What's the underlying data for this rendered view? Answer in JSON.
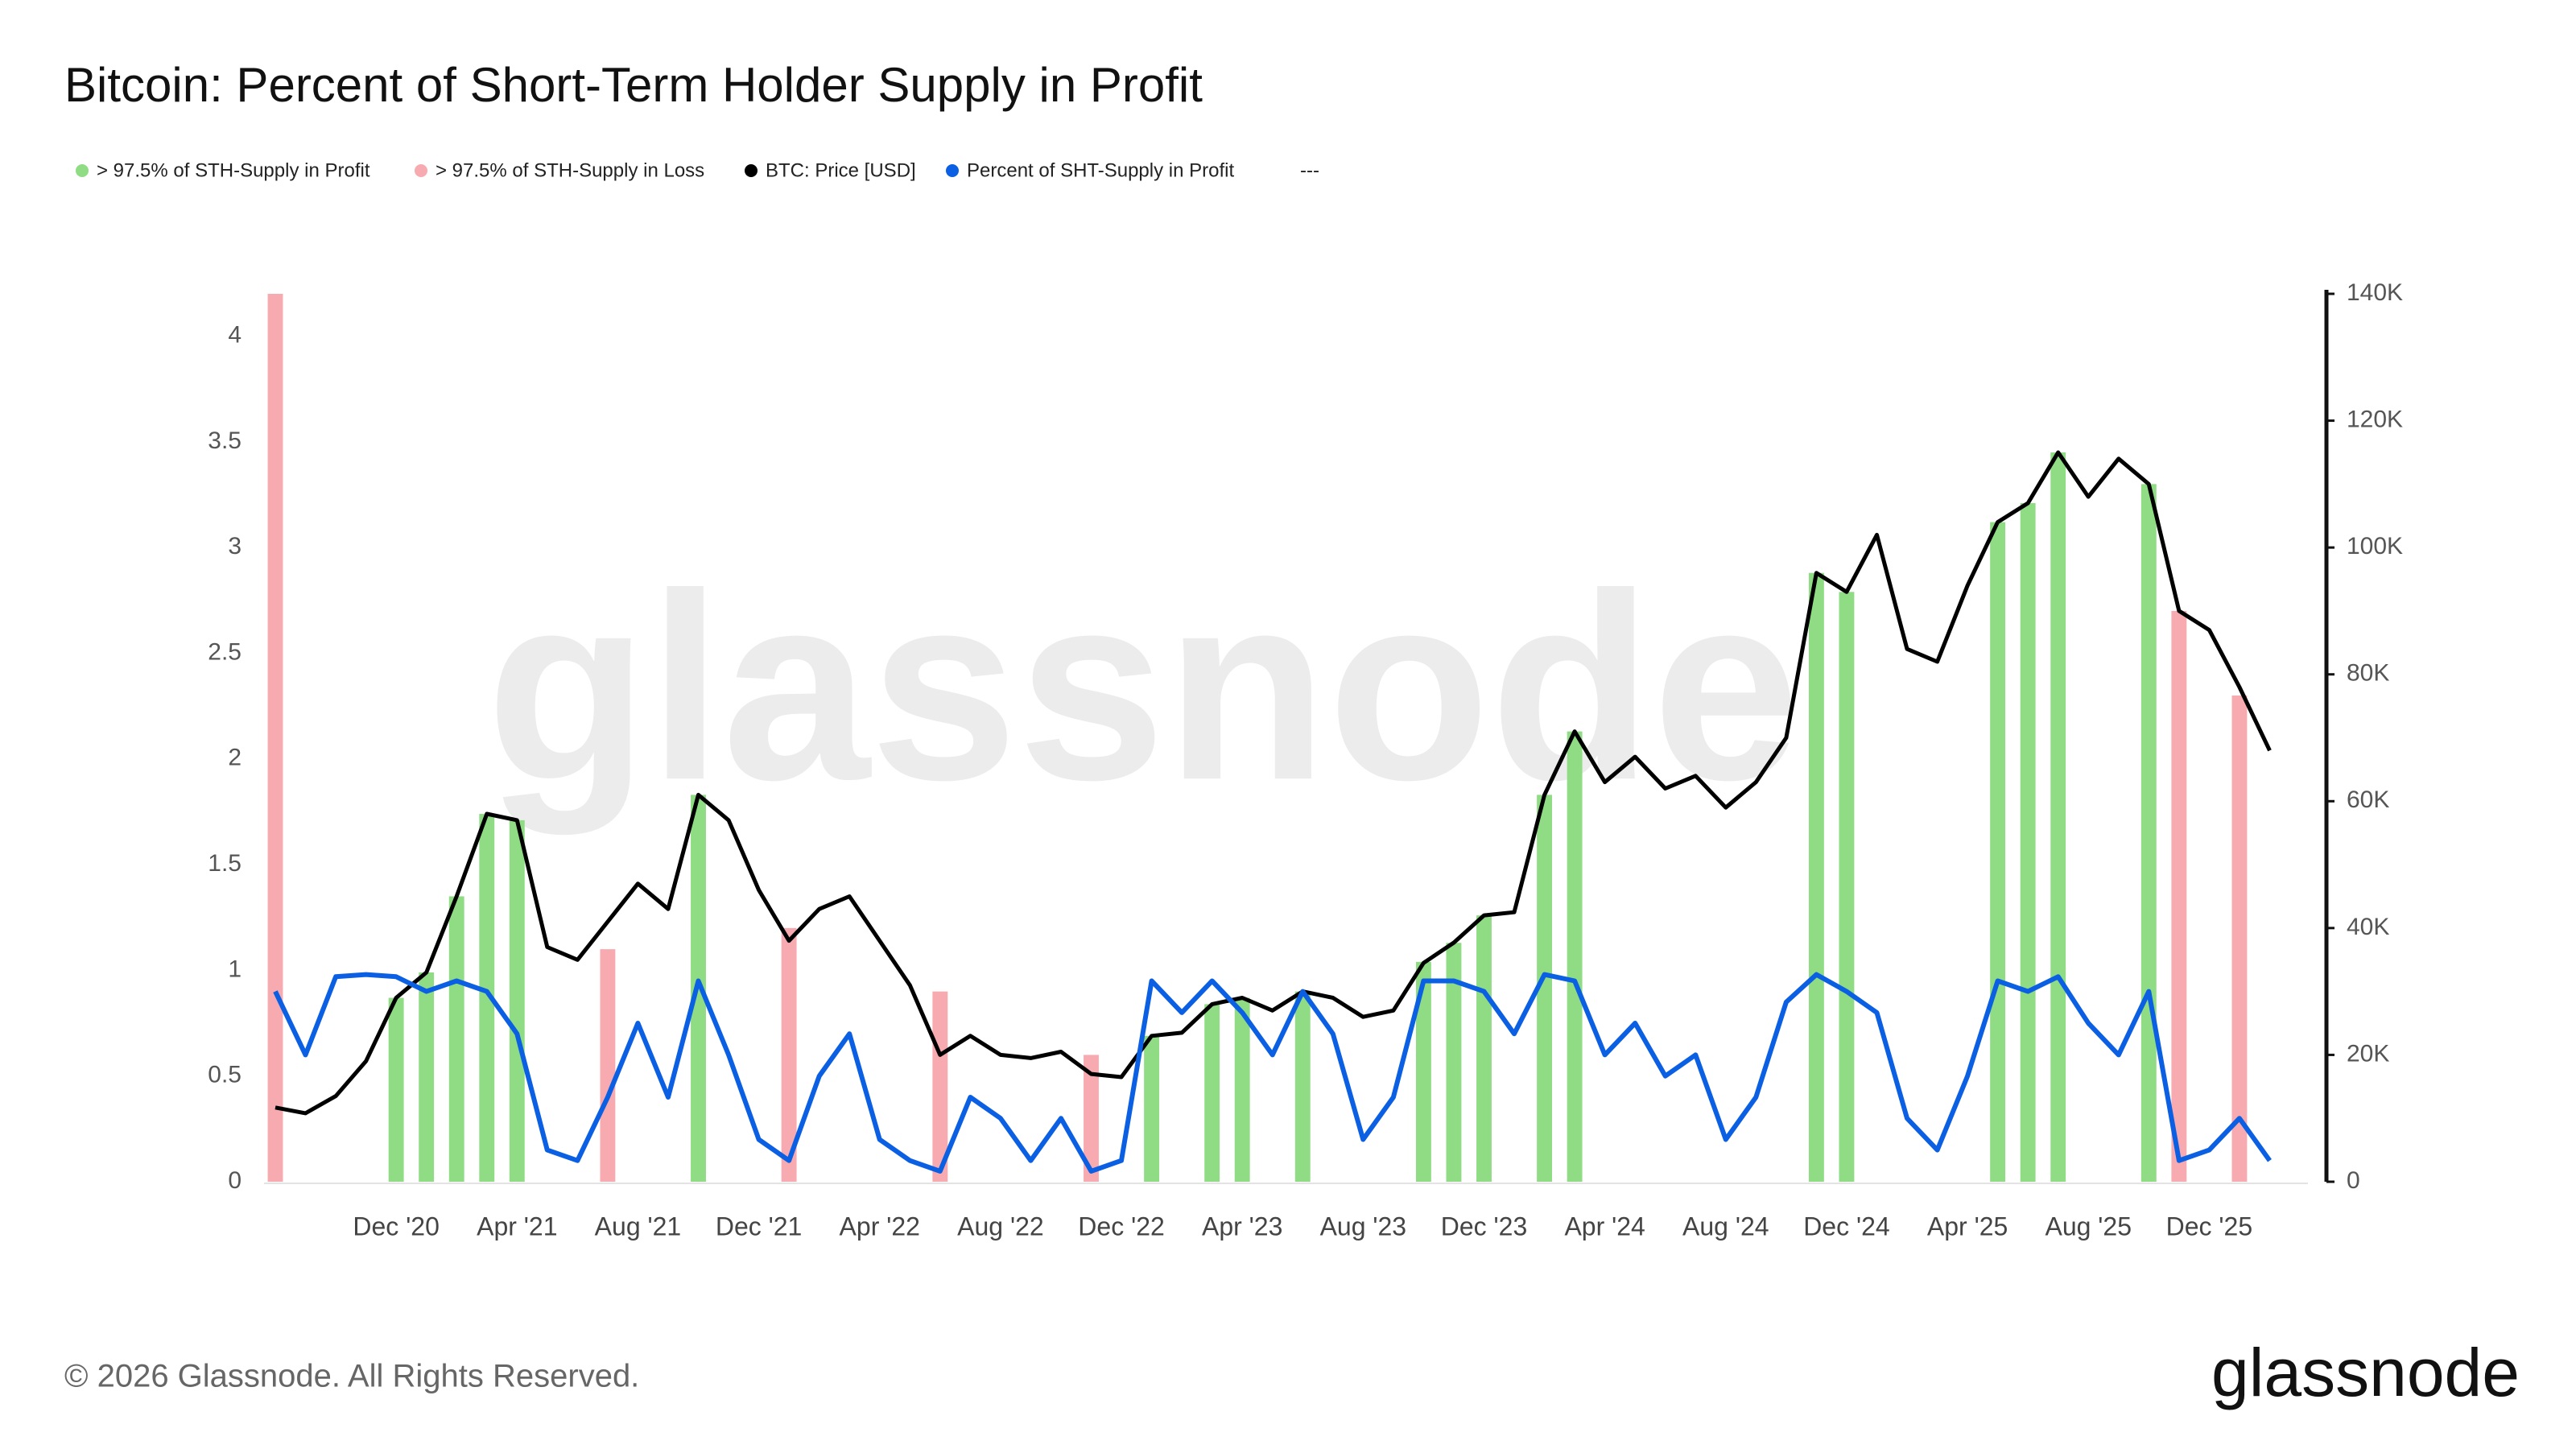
{
  "chart_data": {
    "type": "line",
    "title": "Bitcoin: Percent of Short-Term Holder Supply in Profit",
    "legend_extra": "---",
    "watermark": "glassnode",
    "footer": "© 2026 Glassnode. All Rights Reserved.",
    "logo": "glassnode",
    "x": [
      "2020-08",
      "2020-09",
      "2020-10",
      "2020-11",
      "2020-12",
      "2021-01",
      "2021-02",
      "2021-03",
      "2021-04",
      "2021-05",
      "2021-06",
      "2021-07",
      "2021-08",
      "2021-09",
      "2021-10",
      "2021-11",
      "2021-12",
      "2022-01",
      "2022-02",
      "2022-03",
      "2022-04",
      "2022-05",
      "2022-06",
      "2022-07",
      "2022-08",
      "2022-09",
      "2022-10",
      "2022-11",
      "2022-12",
      "2023-01",
      "2023-02",
      "2023-03",
      "2023-04",
      "2023-05",
      "2023-06",
      "2023-07",
      "2023-08",
      "2023-09",
      "2023-10",
      "2023-11",
      "2023-12",
      "2024-01",
      "2024-02",
      "2024-03",
      "2024-04",
      "2024-05",
      "2024-06",
      "2024-07",
      "2024-08",
      "2024-09",
      "2024-10",
      "2024-11",
      "2024-12",
      "2025-01",
      "2025-02",
      "2025-03",
      "2025-04",
      "2025-05",
      "2025-06",
      "2025-07",
      "2025-08",
      "2025-09",
      "2025-10",
      "2025-11",
      "2025-12",
      "2026-01",
      "2026-02"
    ],
    "xlim": [
      "2020-08",
      "2026-03"
    ],
    "xticks": [
      {
        "value": "2020-12",
        "label": "Dec '20"
      },
      {
        "value": "2021-04",
        "label": "Apr '21"
      },
      {
        "value": "2021-08",
        "label": "Aug '21"
      },
      {
        "value": "2021-12",
        "label": "Dec '21"
      },
      {
        "value": "2022-04",
        "label": "Apr '22"
      },
      {
        "value": "2022-08",
        "label": "Aug '22"
      },
      {
        "value": "2022-12",
        "label": "Dec '22"
      },
      {
        "value": "2023-04",
        "label": "Apr '23"
      },
      {
        "value": "2023-08",
        "label": "Aug '23"
      },
      {
        "value": "2023-12",
        "label": "Dec '23"
      },
      {
        "value": "2024-04",
        "label": "Apr '24"
      },
      {
        "value": "2024-08",
        "label": "Aug '24"
      },
      {
        "value": "2024-12",
        "label": "Dec '24"
      },
      {
        "value": "2025-04",
        "label": "Apr '25"
      },
      {
        "value": "2025-08",
        "label": "Aug '25"
      },
      {
        "value": "2025-12",
        "label": "Dec '25"
      }
    ],
    "ylim": [
      0,
      4.2
    ],
    "yticks": [
      0,
      0.5,
      1,
      1.5,
      2,
      2.5,
      3,
      3.5,
      4
    ],
    "y2lim": [
      0,
      140000
    ],
    "y2ticks": [
      0,
      {
        "value": 20000,
        "label": "20K"
      },
      {
        "value": 40000,
        "label": "40K"
      },
      {
        "value": 60000,
        "label": "60K"
      },
      {
        "value": 80000,
        "label": "80K"
      },
      {
        "value": 100000,
        "label": "100K"
      },
      {
        "value": 120000,
        "label": "120K"
      },
      {
        "value": 140000,
        "label": "140K"
      }
    ],
    "series": [
      {
        "name": "> 97.5% of STH-Supply in Profit",
        "type": "bar",
        "color": "#8fdc84",
        "x": [
          "2020-12",
          "2021-01",
          "2021-02",
          "2021-03",
          "2021-04",
          "2021-10",
          "2023-01",
          "2023-03",
          "2023-04",
          "2023-06",
          "2023-10",
          "2023-11",
          "2023-12",
          "2024-02",
          "2024-03",
          "2024-11",
          "2024-12",
          "2025-05",
          "2025-06",
          "2025-07",
          "2025-10"
        ],
        "values": [
          0.87,
          0.99,
          1.35,
          1.74,
          1.71,
          1.83,
          0.69,
          0.84,
          0.87,
          0.9,
          1.04,
          1.13,
          1.26,
          1.83,
          2.13,
          2.88,
          2.79,
          3.12,
          3.21,
          3.45,
          3.3
        ]
      },
      {
        "name": "> 97.5% of STH-Supply in Loss",
        "type": "bar",
        "color": "#f7aab0",
        "x": [
          "2020-08",
          "2021-07",
          "2022-01",
          "2022-06",
          "2022-11",
          "2025-11",
          "2026-01"
        ],
        "values": [
          4.2,
          1.1,
          1.2,
          0.9,
          0.6,
          2.7,
          2.3
        ]
      },
      {
        "name": "BTC: Price [USD]",
        "axis": "y2",
        "color": "#000000",
        "values": [
          11700,
          10800,
          13500,
          19000,
          29000,
          33000,
          45000,
          58000,
          57000,
          37000,
          35000,
          41000,
          47000,
          43000,
          61000,
          57000,
          46000,
          38000,
          43000,
          45000,
          38000,
          31000,
          20000,
          23000,
          20000,
          19500,
          20500,
          17000,
          16500,
          23000,
          23500,
          28000,
          29000,
          27000,
          30000,
          29000,
          26000,
          27000,
          34500,
          37700,
          42000,
          42500,
          61000,
          71000,
          63000,
          67000,
          62000,
          64000,
          59000,
          63000,
          70000,
          96000,
          93000,
          102000,
          84000,
          82000,
          94000,
          104000,
          107000,
          115000,
          108000,
          114000,
          110000,
          90000,
          87000,
          78000,
          68000
        ]
      },
      {
        "name": "Percent of SHT-Supply in Profit",
        "color": "#0b5fe3",
        "values": [
          0.9,
          0.6,
          0.97,
          0.98,
          0.97,
          0.9,
          0.95,
          0.9,
          0.7,
          0.15,
          0.1,
          0.4,
          0.75,
          0.4,
          0.95,
          0.6,
          0.2,
          0.1,
          0.5,
          0.7,
          0.2,
          0.1,
          0.05,
          0.4,
          0.3,
          0.1,
          0.3,
          0.05,
          0.1,
          0.95,
          0.8,
          0.95,
          0.8,
          0.6,
          0.9,
          0.7,
          0.2,
          0.4,
          0.95,
          0.95,
          0.9,
          0.7,
          0.98,
          0.95,
          0.6,
          0.75,
          0.5,
          0.6,
          0.2,
          0.4,
          0.85,
          0.98,
          0.9,
          0.8,
          0.3,
          0.15,
          0.5,
          0.95,
          0.9,
          0.97,
          0.75,
          0.6,
          0.9,
          0.1,
          0.15,
          0.3,
          0.1
        ]
      }
    ]
  }
}
